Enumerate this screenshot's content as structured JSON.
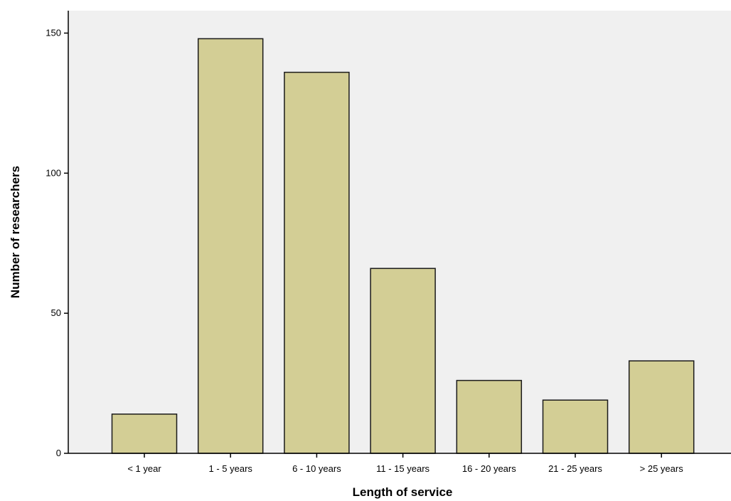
{
  "chart_data": {
    "type": "bar",
    "title": "",
    "xlabel": "Length of service",
    "ylabel": "Number of researchers",
    "categories": [
      "< 1 year",
      "1 - 5 years",
      "6 - 10 years",
      "11 - 15 years",
      "16 - 20 years",
      "21 - 25 years",
      "> 25 years"
    ],
    "values": [
      14,
      148,
      136,
      66,
      26,
      19,
      33
    ],
    "ylim": [
      0,
      158
    ],
    "yticks": [
      0,
      50,
      100,
      150
    ],
    "grid": false,
    "legend": "none",
    "colors": {
      "bar_fill": "#d3ce95",
      "bar_stroke": "#1a1a1a",
      "plot_background": "#f0f0f0",
      "axis": "#000000"
    }
  }
}
